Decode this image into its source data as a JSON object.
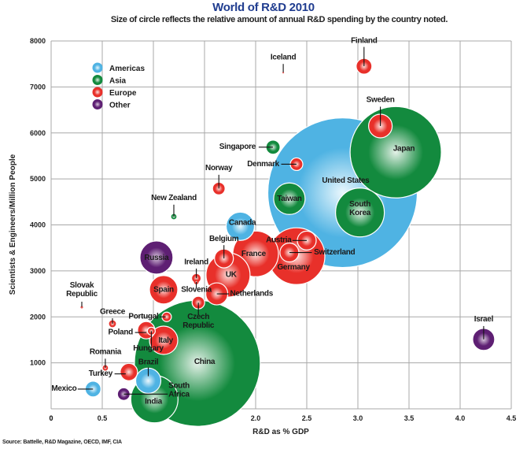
{
  "chart_data": {
    "type": "scatter",
    "subtype": "bubble",
    "title": "World of R&D 2010",
    "subtitle": "Size of circle reflects the relative amount of annual R&D spending by the country noted.",
    "xlabel": "R&D as % GDP",
    "ylabel": "Scientists & Engineers/Million People",
    "xlim": [
      0,
      4.5
    ],
    "ylim": [
      0,
      8000
    ],
    "xticks": [
      "0",
      "0.5",
      "1.0",
      "1.5",
      "2.0",
      "2.5",
      "3.0",
      "3.5",
      "4.0",
      "4.5"
    ],
    "yticks": [
      "0",
      "1000",
      "2000",
      "3000",
      "4000",
      "5000",
      "6000",
      "7000",
      "8000"
    ],
    "grid": true,
    "legend_position": "top-left",
    "legend": [
      {
        "name": "Americas",
        "color": "#4fb3e3"
      },
      {
        "name": "Asia",
        "color": "#138a3e"
      },
      {
        "name": "Europe",
        "color": "#e8302a"
      },
      {
        "name": "Other",
        "color": "#5e1f73"
      }
    ],
    "source": "Source: Battelle, R&D Magazine, OECD, IMF, CIA",
    "points": [
      {
        "name": "United States",
        "region": "Americas",
        "x": 2.85,
        "y": 4700,
        "size": 95
      },
      {
        "name": "China",
        "region": "Asia",
        "x": 1.43,
        "y": 990,
        "size": 80
      },
      {
        "name": "Japan",
        "region": "Asia",
        "x": 3.37,
        "y": 5580,
        "size": 58
      },
      {
        "name": "Germany",
        "region": "Europe",
        "x": 2.4,
        "y": 3320,
        "size": 36
      },
      {
        "name": "South Korea",
        "region": "Asia",
        "x": 3.02,
        "y": 4270,
        "size": 31
      },
      {
        "name": "France",
        "region": "Europe",
        "x": 2.0,
        "y": 3370,
        "size": 29
      },
      {
        "name": "UK",
        "region": "Europe",
        "x": 1.73,
        "y": 2910,
        "size": 28
      },
      {
        "name": "India",
        "region": "Asia",
        "x": 1.01,
        "y": 210,
        "size": 30
      },
      {
        "name": "Canada",
        "region": "Americas",
        "x": 1.85,
        "y": 3970,
        "size": 18
      },
      {
        "name": "Russia",
        "region": "Other",
        "x": 1.03,
        "y": 3290,
        "size": 21
      },
      {
        "name": "Taiwan",
        "region": "Asia",
        "x": 2.33,
        "y": 4570,
        "size": 20
      },
      {
        "name": "Italy",
        "region": "Europe",
        "x": 1.1,
        "y": 1490,
        "size": 18
      },
      {
        "name": "Brazil",
        "region": "Americas",
        "x": 0.95,
        "y": 610,
        "size": 16
      },
      {
        "name": "Spain",
        "region": "Europe",
        "x": 1.1,
        "y": 2590,
        "size": 18
      },
      {
        "name": "Sweden",
        "region": "Europe",
        "x": 3.22,
        "y": 6150,
        "size": 15
      },
      {
        "name": "Netherlands",
        "region": "Europe",
        "x": 1.62,
        "y": 2500,
        "size": 14
      },
      {
        "name": "Switzerland",
        "region": "Europe",
        "x": 2.33,
        "y": 3400,
        "size": 12
      },
      {
        "name": "Austria",
        "region": "Europe",
        "x": 2.5,
        "y": 3660,
        "size": 12
      },
      {
        "name": "Belgium",
        "region": "Europe",
        "x": 1.69,
        "y": 3270,
        "size": 12
      },
      {
        "name": "Poland",
        "region": "Europe",
        "x": 0.93,
        "y": 1710,
        "size": 11
      },
      {
        "name": "Turkey",
        "region": "Europe",
        "x": 0.76,
        "y": 800,
        "size": 11
      },
      {
        "name": "Finland",
        "region": "Europe",
        "x": 3.06,
        "y": 7450,
        "size": 10
      },
      {
        "name": "Denmark",
        "region": "Europe",
        "x": 2.4,
        "y": 5320,
        "size": 8
      },
      {
        "name": "Norway",
        "region": "Europe",
        "x": 1.64,
        "y": 4790,
        "size": 8
      },
      {
        "name": "Mexico",
        "region": "Americas",
        "x": 0.41,
        "y": 430,
        "size": 10
      },
      {
        "name": "Israel",
        "region": "Other",
        "x": 4.23,
        "y": 1510,
        "size": 14
      },
      {
        "name": "Singapore",
        "region": "Asia",
        "x": 2.17,
        "y": 5690,
        "size": 9
      },
      {
        "name": "South Africa",
        "region": "Other",
        "x": 0.71,
        "y": 320,
        "size": 8
      },
      {
        "name": "Czech Republic",
        "region": "Europe",
        "x": 1.44,
        "y": 2310,
        "size": 8
      },
      {
        "name": "Portugal",
        "region": "Europe",
        "x": 1.13,
        "y": 2000,
        "size": 6
      },
      {
        "name": "Ireland",
        "region": "Europe",
        "x": 1.42,
        "y": 2840,
        "size": 6
      },
      {
        "name": "Hungary",
        "region": "Europe",
        "x": 0.98,
        "y": 1690,
        "size": 5
      },
      {
        "name": "Greece",
        "region": "Europe",
        "x": 0.6,
        "y": 1850,
        "size": 5
      },
      {
        "name": "New Zealand",
        "region": "Asia",
        "x": 1.2,
        "y": 4180,
        "size": 4
      },
      {
        "name": "Romania",
        "region": "Europe",
        "x": 0.53,
        "y": 890,
        "size": 4
      },
      {
        "name": "Slovenia",
        "region": "Europe",
        "x": 1.42,
        "y": 2760,
        "size": 3
      },
      {
        "name": "Slovak Republic",
        "region": "Europe",
        "x": 0.3,
        "y": 2210,
        "size": 1.5
      },
      {
        "name": "Iceland",
        "region": "Europe",
        "x": 2.27,
        "y": 7310,
        "size": 1
      }
    ],
    "labels": [
      {
        "name": "United States",
        "lines": [
          "United States"
        ],
        "lx": 2.88,
        "ly": 4920,
        "anchor": "middle",
        "leader": false
      },
      {
        "name": "China",
        "lines": [
          "China"
        ],
        "lx": 1.5,
        "ly": 980,
        "anchor": "middle",
        "leader": false
      },
      {
        "name": "Japan",
        "lines": [
          "Japan"
        ],
        "lx": 3.45,
        "ly": 5610,
        "anchor": "middle",
        "leader": false
      },
      {
        "name": "Germany",
        "lines": [
          "Germany"
        ],
        "lx": 2.37,
        "ly": 3030,
        "anchor": "middle",
        "leader": false
      },
      {
        "name": "South Korea",
        "lines": [
          "South",
          "Korea"
        ],
        "lx": 3.02,
        "ly": 4400,
        "anchor": "middle",
        "leader": false
      },
      {
        "name": "France",
        "lines": [
          "France"
        ],
        "lx": 1.98,
        "ly": 3320,
        "anchor": "middle",
        "leader": false
      },
      {
        "name": "UK",
        "lines": [
          "UK"
        ],
        "lx": 1.76,
        "ly": 2870,
        "anchor": "middle",
        "leader": false
      },
      {
        "name": "India",
        "lines": [
          "India"
        ],
        "lx": 1.0,
        "ly": 110,
        "anchor": "middle",
        "leader": false
      },
      {
        "name": "Canada",
        "lines": [
          "Canada"
        ],
        "lx": 1.87,
        "ly": 4000,
        "anchor": "middle",
        "leader": false
      },
      {
        "name": "Russia",
        "lines": [
          "Russia"
        ],
        "lx": 1.03,
        "ly": 3240,
        "anchor": "middle",
        "leader": false
      },
      {
        "name": "Taiwan",
        "lines": [
          "Taiwan"
        ],
        "lx": 2.33,
        "ly": 4520,
        "anchor": "middle",
        "leader": false
      },
      {
        "name": "Italy",
        "lines": [
          "Italy"
        ],
        "lx": 1.12,
        "ly": 1440,
        "anchor": "middle",
        "leader": false
      },
      {
        "name": "Spain",
        "lines": [
          "Spain"
        ],
        "lx": 1.1,
        "ly": 2540,
        "anchor": "middle",
        "leader": false
      },
      {
        "name": "Brazil",
        "lines": [
          "Brazil"
        ],
        "lx": 0.95,
        "ly": 970,
        "anchor": "middle",
        "leader": true,
        "ex": 0.95,
        "ey": 710,
        "sx": 0.95,
        "sy": 900
      },
      {
        "name": "Sweden",
        "lines": [
          "Sweden"
        ],
        "lx": 3.22,
        "ly": 6670,
        "anchor": "middle",
        "leader": true,
        "ex": 3.22,
        "ey": 6150,
        "sx": 3.22,
        "sy": 6570
      },
      {
        "name": "Finland",
        "lines": [
          "Finland"
        ],
        "lx": 3.06,
        "ly": 7960,
        "anchor": "middle",
        "leader": true,
        "ex": 3.06,
        "ey": 7450,
        "sx": 3.06,
        "sy": 7870
      },
      {
        "name": "Iceland",
        "lines": [
          "Iceland"
        ],
        "lx": 2.27,
        "ly": 7600,
        "anchor": "middle",
        "leader": true,
        "ex": 2.27,
        "ey": 7320,
        "sx": 2.27,
        "sy": 7500
      },
      {
        "name": "Singapore",
        "lines": [
          "Singapore"
        ],
        "lx": 2.0,
        "ly": 5650,
        "anchor": "end",
        "leader": true,
        "ex": 2.17,
        "ey": 5690,
        "sx": 2.03,
        "sy": 5690
      },
      {
        "name": "Denmark",
        "lines": [
          "Denmark"
        ],
        "lx": 2.23,
        "ly": 5280,
        "anchor": "end",
        "leader": true,
        "ex": 2.4,
        "ey": 5320,
        "sx": 2.25,
        "sy": 5320
      },
      {
        "name": "Norway",
        "lines": [
          "Norway"
        ],
        "lx": 1.64,
        "ly": 5190,
        "anchor": "middle",
        "leader": true,
        "ex": 1.64,
        "ey": 4790,
        "sx": 1.64,
        "sy": 5090
      },
      {
        "name": "New Zealand",
        "lines": [
          "New Zealand"
        ],
        "lx": 1.2,
        "ly": 4540,
        "anchor": "middle",
        "leader": true,
        "ex": 1.2,
        "ey": 4180,
        "sx": 1.2,
        "sy": 4440
      },
      {
        "name": "Austria",
        "lines": [
          "Austria"
        ],
        "lx": 2.35,
        "ly": 3620,
        "anchor": "end",
        "leader": true,
        "ex": 2.5,
        "ey": 3660,
        "sx": 2.36,
        "sy": 3660
      },
      {
        "name": "Switzerland",
        "lines": [
          "Switzerland"
        ],
        "lx": 2.57,
        "ly": 3360,
        "anchor": "start",
        "leader": true,
        "ex": 2.33,
        "ey": 3400,
        "sx": 2.55,
        "sy": 3400
      },
      {
        "name": "Belgium",
        "lines": [
          "Belgium"
        ],
        "lx": 1.69,
        "ly": 3650,
        "anchor": "middle",
        "leader": true,
        "ex": 1.69,
        "ey": 3270,
        "sx": 1.69,
        "sy": 3560
      },
      {
        "name": "Ireland",
        "lines": [
          "Ireland"
        ],
        "lx": 1.42,
        "ly": 3140,
        "anchor": "middle",
        "leader": true,
        "ex": 1.42,
        "ey": 2840,
        "sx": 1.42,
        "sy": 3050
      },
      {
        "name": "Slovenia",
        "lines": [
          "Slovenia"
        ],
        "lx": 1.42,
        "ly": 2540,
        "anchor": "middle",
        "leader": true,
        "ex": 1.42,
        "ey": 2760,
        "sx": 1.42,
        "sy": 2620
      },
      {
        "name": "Netherlands",
        "lines": [
          "Netherlands"
        ],
        "lx": 1.75,
        "ly": 2460,
        "anchor": "start",
        "leader": true,
        "ex": 1.62,
        "ey": 2500,
        "sx": 1.74,
        "sy": 2500
      },
      {
        "name": "Czech Republic",
        "lines": [
          "Czech",
          "Republic"
        ],
        "lx": 1.44,
        "ly": 1950,
        "anchor": "middle",
        "leader": true,
        "ex": 1.44,
        "ey": 2310,
        "sx": 1.44,
        "sy": 2040
      },
      {
        "name": "Slovak Republic",
        "lines": [
          "Slovak",
          "Republic"
        ],
        "lx": 0.3,
        "ly": 2640,
        "anchor": "middle",
        "leader": true,
        "ex": 0.3,
        "ey": 2220,
        "sx": 0.3,
        "sy": 2330
      },
      {
        "name": "Portugal",
        "lines": [
          "Portugal"
        ],
        "lx": 1.05,
        "ly": 1960,
        "anchor": "end",
        "leader": true,
        "ex": 1.12,
        "ey": 2000,
        "sx": 1.06,
        "sy": 2000
      },
      {
        "name": "Greece",
        "lines": [
          "Greece"
        ],
        "lx": 0.6,
        "ly": 2060,
        "anchor": "middle",
        "leader": true,
        "ex": 0.6,
        "ey": 1850,
        "sx": 0.6,
        "sy": 1970
      },
      {
        "name": "Poland",
        "lines": [
          "Poland"
        ],
        "lx": 0.8,
        "ly": 1620,
        "anchor": "end",
        "leader": true,
        "ex": 0.93,
        "ey": 1660,
        "sx": 0.82,
        "sy": 1660
      },
      {
        "name": "Hungary",
        "lines": [
          "Hungary"
        ],
        "lx": 0.95,
        "ly": 1270,
        "anchor": "middle",
        "leader": true,
        "ex": 0.98,
        "ey": 1690,
        "sx": 0.98,
        "sy": 1370
      },
      {
        "name": "Romania",
        "lines": [
          "Romania"
        ],
        "lx": 0.53,
        "ly": 1190,
        "anchor": "middle",
        "leader": true,
        "ex": 0.53,
        "ey": 890,
        "sx": 0.53,
        "sy": 1090
      },
      {
        "name": "Turkey",
        "lines": [
          "Turkey"
        ],
        "lx": 0.6,
        "ly": 720,
        "anchor": "end",
        "leader": true,
        "ex": 0.73,
        "ey": 760,
        "sx": 0.62,
        "sy": 760
      },
      {
        "name": "Mexico",
        "lines": [
          "Mexico"
        ],
        "lx": 0.25,
        "ly": 390,
        "anchor": "end",
        "leader": true,
        "ex": 0.41,
        "ey": 430,
        "sx": 0.26,
        "sy": 430
      },
      {
        "name": "South Africa",
        "lines": [
          "South",
          "Africa"
        ],
        "lx": 1.25,
        "ly": 450,
        "anchor": "middle",
        "leader": true,
        "ex": 0.71,
        "ey": 320,
        "sx": 1.14,
        "sy": 320
      },
      {
        "name": "Israel",
        "lines": [
          "Israel"
        ],
        "lx": 4.23,
        "ly": 1900,
        "anchor": "middle",
        "leader": true,
        "ex": 4.23,
        "ey": 1510,
        "sx": 4.23,
        "sy": 1800
      }
    ]
  },
  "colors": {
    "title": "#1f3c8f",
    "grid": "#a8a8a8",
    "americas": "#4fb3e3",
    "asia": "#138a3e",
    "europe": "#e8302a",
    "other": "#5e1f73"
  }
}
